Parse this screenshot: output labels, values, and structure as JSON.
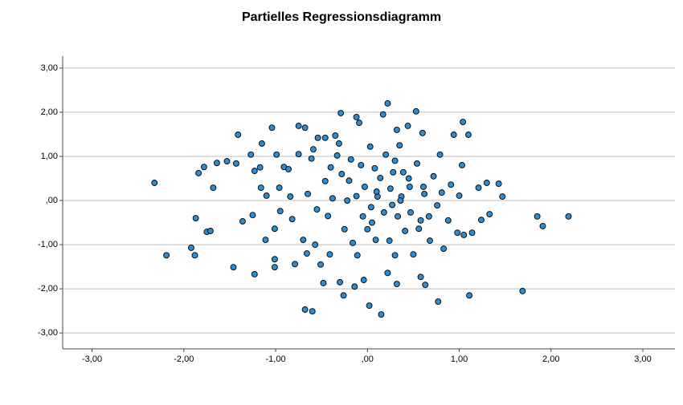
{
  "chart_data": {
    "type": "scatter",
    "title": "Partielles Regressionsdiagramm",
    "color": "#2b8dd6",
    "grid": true,
    "xlim": [
      -3.32,
      3.35
    ],
    "ylim": [
      -3.36,
      3.27
    ],
    "xticks": [
      {
        "value": -3,
        "label": "-3,00"
      },
      {
        "value": -2,
        "label": "-2,00"
      },
      {
        "value": -1,
        "label": "-1,00"
      },
      {
        "value": 0,
        "label": ",00"
      },
      {
        "value": 1,
        "label": "1,00"
      },
      {
        "value": 2,
        "label": "2,00"
      },
      {
        "value": 3,
        "label": "3,00"
      }
    ],
    "yticks": [
      {
        "value": 3,
        "label": "3,00"
      },
      {
        "value": 2,
        "label": "2,00"
      },
      {
        "value": 1,
        "label": "1,00"
      },
      {
        "value": 0,
        "label": ",00"
      },
      {
        "value": -1,
        "label": "-1,00"
      },
      {
        "value": -2,
        "label": "-2,00"
      },
      {
        "value": -3,
        "label": "-3,00"
      }
    ],
    "x": [
      -2.32,
      -2.19,
      -1.92,
      -1.88,
      -1.87,
      -1.84,
      -1.78,
      -1.75,
      -1.71,
      -1.68,
      -1.64,
      -1.53,
      -1.46,
      -1.43,
      -1.41,
      -1.36,
      -1.27,
      -1.25,
      -1.23,
      -1.23,
      -1.17,
      -1.15,
      -1.16,
      -1.11,
      -1.1,
      -1.04,
      -1.01,
      -1.01,
      -1.01,
      -0.99,
      -0.96,
      -0.95,
      -0.91,
      -0.86,
      -0.84,
      -0.82,
      -0.79,
      -0.75,
      -0.75,
      -0.7,
      -0.68,
      -0.68,
      -0.66,
      -0.65,
      -0.61,
      -0.6,
      -0.59,
      -0.57,
      -0.54,
      -0.51,
      -0.48,
      -0.46,
      -0.46,
      -0.43,
      -0.41,
      -0.4,
      -0.35,
      -0.33,
      -0.31,
      -0.3,
      -0.26,
      -0.29,
      -0.25,
      -0.22,
      -0.18,
      -0.16,
      -0.14,
      -0.12,
      -0.11,
      -0.09,
      -0.07,
      -0.05,
      -0.04,
      -0.03,
      0.0,
      0.02,
      0.03,
      0.04,
      0.08,
      0.09,
      0.11,
      0.14,
      0.15,
      0.17,
      0.18,
      0.2,
      0.22,
      0.22,
      0.24,
      0.25,
      0.28,
      0.3,
      0.32,
      0.32,
      0.33,
      0.35,
      0.37,
      0.39,
      0.41,
      0.44,
      0.46,
      0.47,
      0.5,
      0.53,
      0.54,
      0.56,
      0.58,
      0.6,
      0.61,
      0.63,
      0.67,
      0.68,
      0.72,
      0.76,
      0.77,
      0.79,
      0.81,
      0.83,
      0.88,
      0.91,
      0.94,
      0.98,
      1.0,
      1.03,
      1.04,
      1.05,
      1.1,
      1.11,
      1.14,
      1.21,
      1.24,
      1.3,
      1.33,
      1.43,
      1.47,
      1.69,
      1.85,
      1.91,
      2.19,
      -0.2,
      0.1,
      0.27,
      -0.38,
      0.45,
      -0.12,
      0.58,
      0.3,
      -0.55,
      0.05,
      0.62,
      -0.28,
      0.36
    ],
    "y": [
      0.4,
      -1.24,
      -1.07,
      -1.24,
      -0.4,
      0.62,
      0.76,
      -0.71,
      -0.69,
      0.29,
      0.85,
      0.89,
      -1.51,
      0.84,
      1.49,
      -0.47,
      1.04,
      -0.33,
      0.67,
      -1.67,
      0.75,
      1.29,
      0.29,
      -0.89,
      0.11,
      1.65,
      -0.64,
      -1.33,
      -1.51,
      1.04,
      0.29,
      -0.24,
      0.76,
      0.71,
      0.09,
      -0.42,
      -1.44,
      1.69,
      1.05,
      -0.89,
      1.65,
      -2.47,
      -1.2,
      0.15,
      0.95,
      -2.51,
      1.16,
      -1.0,
      1.42,
      -1.45,
      -1.87,
      0.44,
      1.42,
      -0.35,
      -1.22,
      0.75,
      1.47,
      1.02,
      1.29,
      -1.85,
      -2.15,
      1.98,
      -0.65,
      0.0,
      0.93,
      -0.96,
      -1.95,
      1.89,
      -1.24,
      1.76,
      0.8,
      -0.36,
      -1.8,
      0.31,
      -0.65,
      -2.38,
      1.22,
      -0.15,
      0.73,
      -0.89,
      0.09,
      0.51,
      -2.58,
      1.95,
      -0.27,
      1.04,
      2.2,
      -1.64,
      -0.91,
      0.27,
      0.64,
      -1.24,
      1.6,
      -1.89,
      -0.36,
      1.25,
      0.09,
      0.64,
      -0.69,
      1.69,
      0.31,
      -0.27,
      -1.22,
      2.02,
      0.84,
      -0.64,
      -1.73,
      1.53,
      0.31,
      -1.91,
      -0.36,
      -0.91,
      0.55,
      -0.11,
      -2.29,
      1.04,
      0.18,
      -1.09,
      -0.45,
      0.36,
      1.49,
      -0.73,
      0.11,
      0.8,
      1.78,
      -0.78,
      1.49,
      -2.15,
      -0.73,
      0.29,
      -0.44,
      0.4,
      -0.31,
      0.38,
      0.09,
      -2.05,
      -0.36,
      -0.58,
      -0.36,
      0.45,
      0.2,
      -0.1,
      0.05,
      0.5,
      0.1,
      -0.45,
      0.9,
      -0.2,
      -0.5,
      0.15,
      0.6,
      0.0
    ]
  }
}
